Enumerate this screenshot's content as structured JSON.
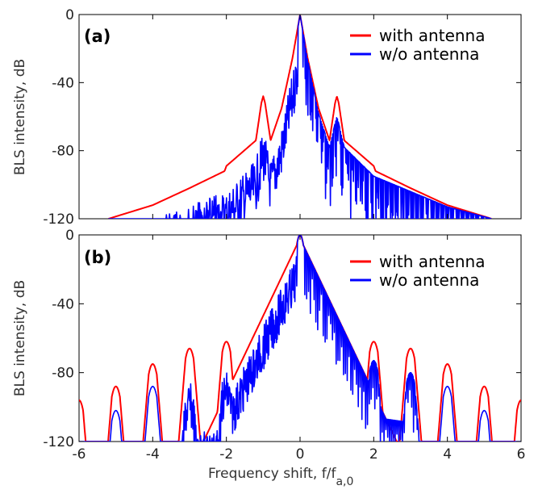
{
  "colors": {
    "with_antenna": "#ff0000",
    "without_antenna": "#0000ff",
    "axes": "#000000"
  },
  "xlabel": "Frequency shift, f/f",
  "xlabel_subscript": "a,0",
  "ylabel": "BLS intensity, dB",
  "chart_data": [
    {
      "type": "line",
      "panel_label": "(a)",
      "ylabel": "BLS intensity, dB",
      "xlim": [
        -6,
        6
      ],
      "ylim": [
        -120,
        0
      ],
      "yticks": [
        0,
        -40,
        -80,
        -120
      ],
      "ytick_labels": [
        "0",
        "-40",
        "-80",
        "-120"
      ],
      "legend_position": "top-right",
      "series": [
        {
          "name": "with antenna",
          "color": "#ff0000",
          "x": [
            -5.2,
            -4,
            -3,
            -2.05,
            -2,
            -1.2,
            -1.05,
            -1,
            -0.95,
            -0.8,
            -0.5,
            -0.2,
            0,
            0.2,
            0.5,
            0.8,
            0.95,
            1,
            1.05,
            1.2,
            2,
            2.05,
            3,
            4,
            5.2
          ],
          "y": [
            -120,
            -112,
            -102,
            -92,
            -89,
            -74,
            -52,
            -48,
            -52,
            -74,
            -55,
            -25,
            0,
            -25,
            -55,
            -74,
            -52,
            -48,
            -52,
            -74,
            -89,
            -92,
            -102,
            -112,
            -120
          ]
        },
        {
          "name": "w/o antenna",
          "color": "#0000ff",
          "x": [
            -5.2,
            -4,
            -3,
            -2,
            -1.2,
            -1.05,
            -1,
            -0.95,
            -0.8,
            -0.5,
            -0.2,
            0,
            0.2,
            0.5,
            0.8,
            0.95,
            1,
            1.05,
            1.2,
            2,
            3,
            4,
            5.2
          ],
          "y": [
            -120,
            -113,
            -104,
            -95,
            -78,
            -64,
            -60,
            -64,
            -78,
            -58,
            -26,
            0,
            -26,
            -58,
            -78,
            -64,
            -60,
            -64,
            -78,
            -95,
            -104,
            -113,
            -120
          ]
        }
      ]
    },
    {
      "type": "line",
      "panel_label": "(b)",
      "ylabel": "BLS intensity, dB",
      "xlabel": "Frequency shift, f/f",
      "xlabel_subscript": "a,0",
      "xlim": [
        -6,
        6
      ],
      "ylim": [
        -120,
        0
      ],
      "xticks": [
        -6,
        -4,
        -2,
        0,
        2,
        4,
        6
      ],
      "xtick_labels": [
        "-6",
        "-4",
        "-2",
        "0",
        "2",
        "4",
        "6"
      ],
      "yticks": [
        0,
        -40,
        -80,
        -120
      ],
      "ytick_labels": [
        "0",
        "-40",
        "-80",
        "-120"
      ],
      "legend_position": "top-right",
      "series": [
        {
          "name": "with antenna",
          "color": "#ff0000",
          "peaks_x": [
            -6,
            -5,
            -4,
            -3,
            -2,
            -1,
            0,
            1,
            2,
            3,
            4,
            5,
            6
          ],
          "peaks_y": [
            -96,
            -88,
            -75,
            -66,
            -62,
            -48,
            0,
            -48,
            -62,
            -66,
            -75,
            -88,
            -96
          ]
        },
        {
          "name": "w/o antenna",
          "color": "#0000ff",
          "peaks_x": [
            -5,
            -4,
            -3,
            -2,
            -1,
            0,
            1,
            2,
            3,
            4,
            5
          ],
          "peaks_y": [
            -102,
            -88,
            -80,
            -73,
            -57,
            0,
            -57,
            -73,
            -80,
            -88,
            -102
          ]
        }
      ]
    }
  ]
}
